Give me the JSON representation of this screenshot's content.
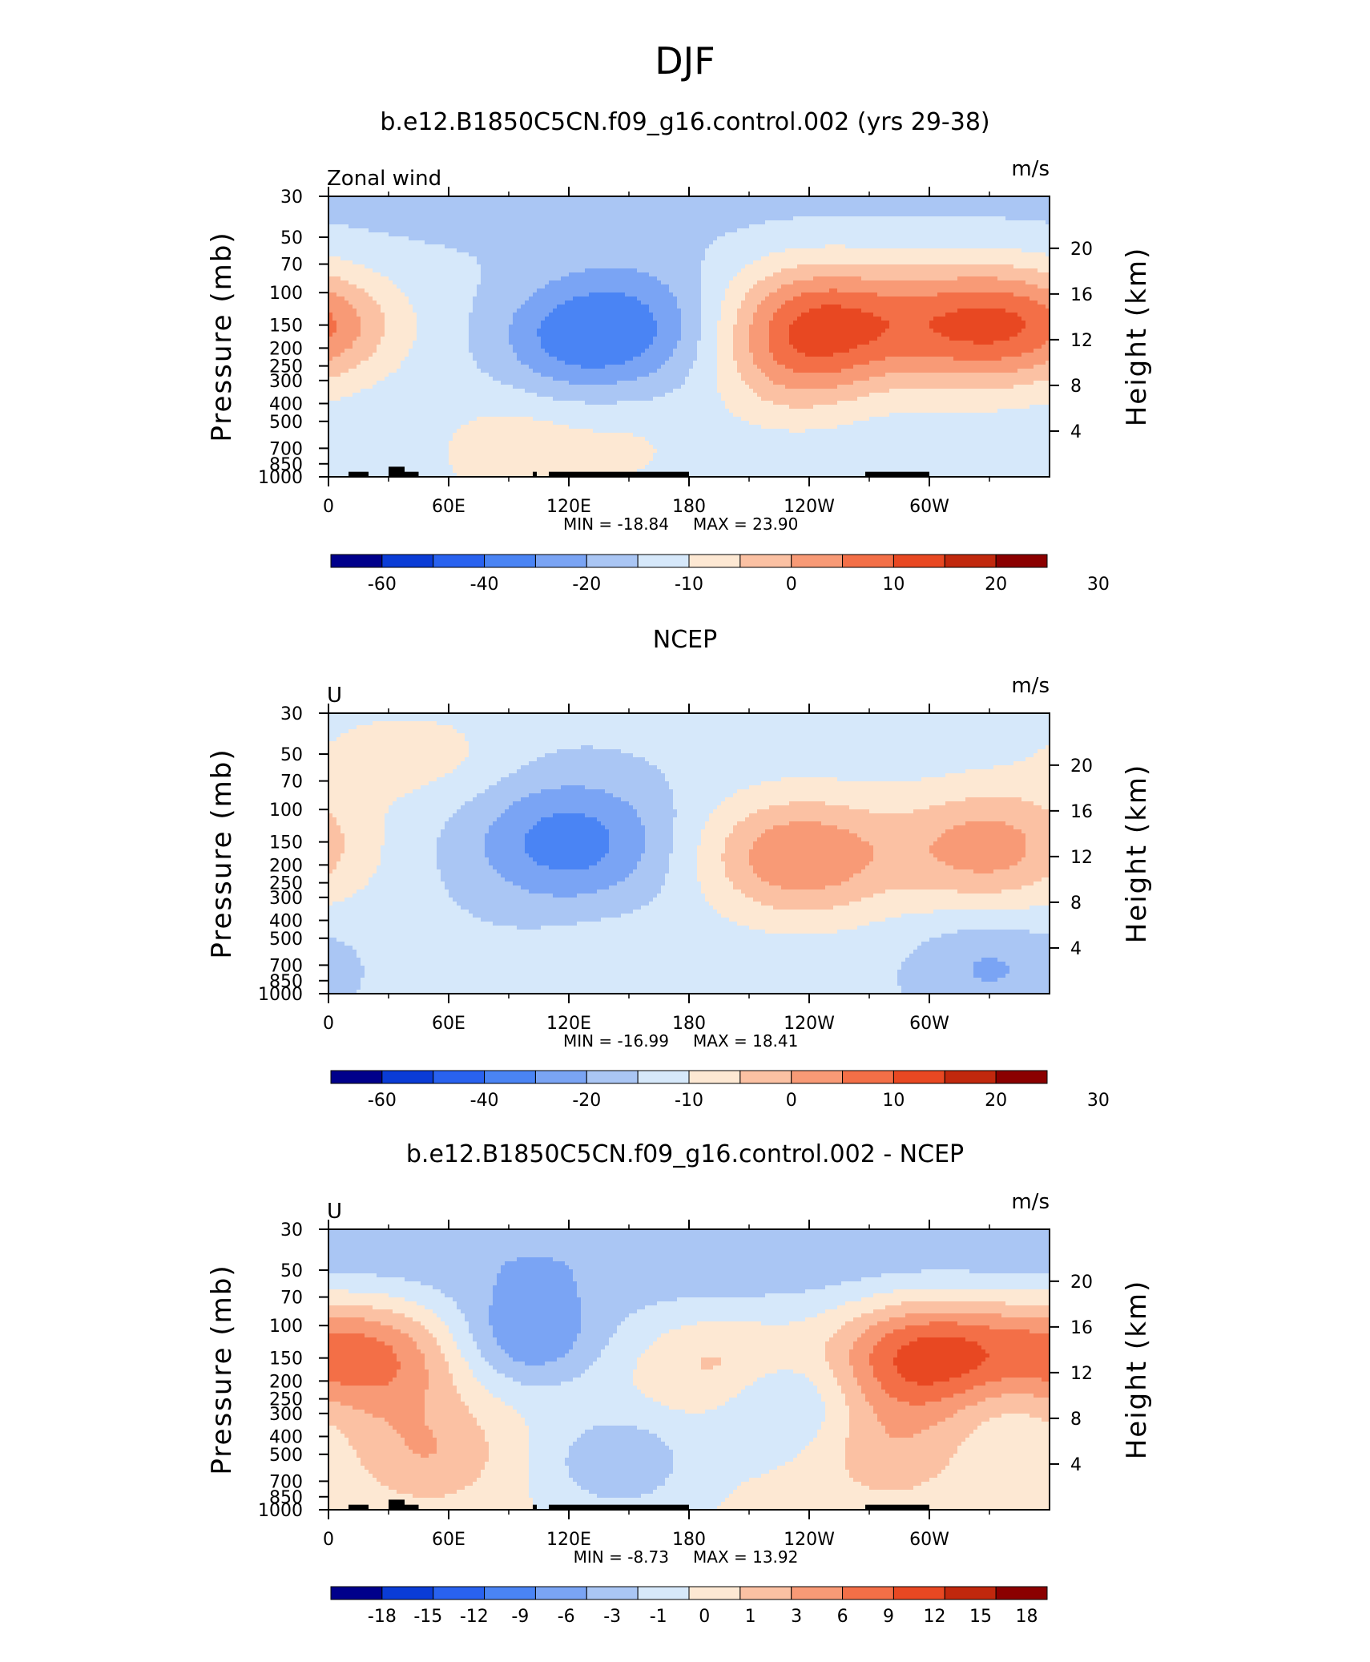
{
  "figure_title": "DJF",
  "chart_data": [
    {
      "type": "heatmap",
      "title": "b.e12.B1850C5CN.f09_g16.control.002 (yrs 29-38)",
      "corner_left": "Zonal wind",
      "corner_right": "m/s",
      "ylabel": "Pressure (mb)",
      "ylabel_right": "Height (km)",
      "x_ticks": [
        "0",
        "60E",
        "120E",
        "180",
        "120W",
        "60W"
      ],
      "y_ticks": [
        "30",
        "50",
        "70",
        "100",
        "150",
        "200",
        "250",
        "300",
        "400",
        "500",
        "700",
        "850",
        "1000"
      ],
      "y_ticks_right": [
        "20",
        "16",
        "12",
        "8",
        "4"
      ],
      "min_label": "MIN = -18.84",
      "max_label": "MAX = 23.90",
      "min": -18.84,
      "max": 23.9,
      "colorbar_labels": [
        "-60",
        "-40",
        "-20",
        "-10",
        "0",
        "10",
        "20",
        "30"
      ],
      "features": [
        {
          "lon": 150,
          "p": 150,
          "v": -12
        },
        {
          "lon": 120,
          "p": 180,
          "v": -8
        },
        {
          "lon": 245,
          "p": 150,
          "v": 23.9
        },
        {
          "lon": 325,
          "p": 150,
          "v": 22
        },
        {
          "lon": 5,
          "p": 150,
          "v": 7
        },
        {
          "lon": 90,
          "p": 740,
          "v": 7
        },
        {
          "lon": 150,
          "p": 700,
          "v": 4
        },
        {
          "lon": 230,
          "p": 300,
          "v": 6
        }
      ]
    },
    {
      "type": "heatmap",
      "title": "NCEP",
      "corner_left": "U",
      "corner_right": "m/s",
      "ylabel": "Pressure (mb)",
      "ylabel_right": "Height (km)",
      "x_ticks": [
        "0",
        "60E",
        "120E",
        "180",
        "120W",
        "60W"
      ],
      "y_ticks": [
        "30",
        "50",
        "70",
        "100",
        "150",
        "200",
        "250",
        "300",
        "400",
        "500",
        "700",
        "850",
        "1000"
      ],
      "y_ticks_right": [
        "20",
        "16",
        "12",
        "8",
        "4"
      ],
      "min_label": "MIN = -16.99",
      "max_label": "MAX = 18.41",
      "min": -16.99,
      "max": 18.41,
      "colorbar_labels": [
        "-60",
        "-40",
        "-20",
        "-10",
        "0",
        "10",
        "20",
        "30"
      ],
      "features": [
        {
          "lon": 120,
          "p": 150,
          "v": -14
        },
        {
          "lon": 235,
          "p": 180,
          "v": 18.4
        },
        {
          "lon": 330,
          "p": 160,
          "v": 16
        },
        {
          "lon": 60,
          "p": 50,
          "v": 4
        },
        {
          "lon": 20,
          "p": 50,
          "v": 4
        },
        {
          "lon": 140,
          "p": 700,
          "v": 3
        },
        {
          "lon": 330,
          "p": 700,
          "v": -7
        }
      ]
    },
    {
      "type": "heatmap",
      "title": "b.e12.B1850C5CN.f09_g16.control.002 - NCEP",
      "corner_left": "U",
      "corner_right": "m/s",
      "ylabel": "Pressure (mb)",
      "ylabel_right": "Height (km)",
      "x_ticks": [
        "0",
        "60E",
        "120E",
        "180",
        "120W",
        "60W"
      ],
      "y_ticks": [
        "30",
        "50",
        "70",
        "100",
        "150",
        "200",
        "250",
        "300",
        "400",
        "500",
        "700",
        "850",
        "1000"
      ],
      "y_ticks_right": [
        "20",
        "16",
        "12",
        "8",
        "4"
      ],
      "min_label": "MIN = -8.73",
      "max_label": "MAX = 13.92",
      "min": -8.73,
      "max": 13.92,
      "colorbar_labels": [
        "-18",
        "-15",
        "-12",
        "-9",
        "-6",
        "-3",
        "-1",
        "0",
        "1",
        "3",
        "6",
        "9",
        "12",
        "15",
        "18"
      ],
      "features": [
        {
          "lon": 100,
          "p": 120,
          "v": -8
        },
        {
          "lon": 225,
          "p": 250,
          "v": -6
        },
        {
          "lon": 145,
          "p": 550,
          "v": -6
        },
        {
          "lon": 300,
          "p": 150,
          "v": 13.9
        },
        {
          "lon": 15,
          "p": 150,
          "v": 11
        },
        {
          "lon": 50,
          "p": 500,
          "v": 5
        },
        {
          "lon": 200,
          "p": 170,
          "v": 5
        },
        {
          "lon": 280,
          "p": 500,
          "v": 4
        },
        {
          "lon": 340,
          "p": 250,
          "v": -4
        }
      ]
    }
  ],
  "colors": {
    "palette": [
      "#00008b",
      "#0a3cd6",
      "#2962ef",
      "#4a84f4",
      "#7aa4f4",
      "#aac6f4",
      "#d6e8fa",
      "#fde8d3",
      "#fbc1a3",
      "#f89a76",
      "#f36f47",
      "#e84822",
      "#c1280d",
      "#8b0000"
    ]
  }
}
